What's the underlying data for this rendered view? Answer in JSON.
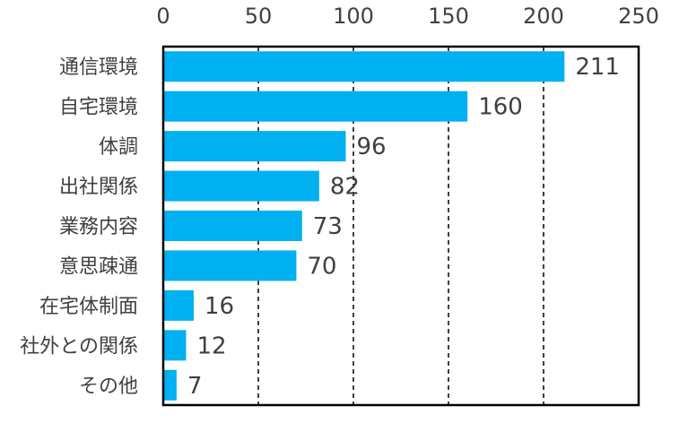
{
  "chart_data": {
    "type": "bar",
    "orientation": "horizontal",
    "categories": [
      "通信環境",
      "自宅環境",
      "体調",
      "出社関係",
      "業務内容",
      "意思疎通",
      "在宅体制面",
      "社外との関係",
      "その他"
    ],
    "values": [
      211,
      160,
      96,
      82,
      73,
      70,
      16,
      12,
      7
    ],
    "title": "",
    "xlabel": "",
    "ylabel": "",
    "xlim": [
      0,
      250
    ],
    "xticks": [
      0,
      50,
      100,
      150,
      200,
      250
    ],
    "x_axis_position": "top",
    "grid": "vertical-dashed",
    "data_labels": true,
    "legend": "none",
    "colors": {
      "bar": "#00B0F0",
      "text": "#404040",
      "grid": "#000000",
      "frame": "#000000"
    }
  }
}
